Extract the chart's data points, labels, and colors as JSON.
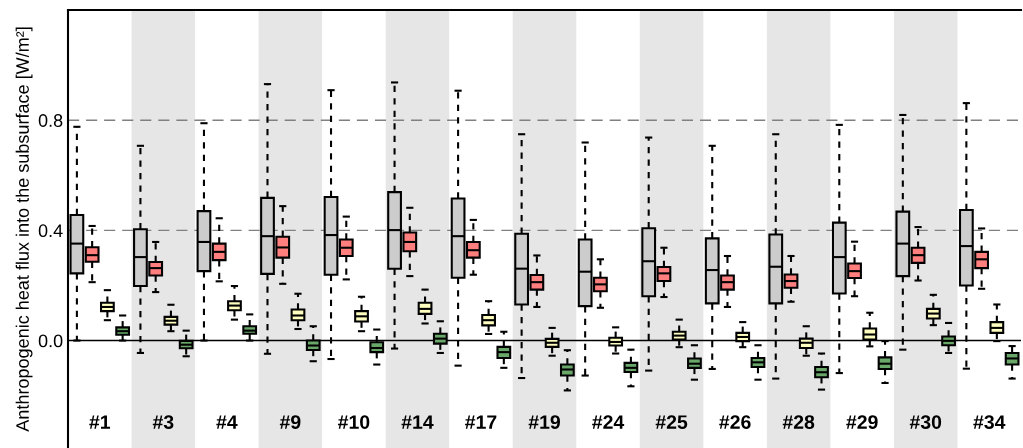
{
  "chart_data": {
    "type": "box",
    "ylabel": "Anthropogenic heat flux into the subsurface [W/m²]",
    "categories": [
      "#1",
      "#3",
      "#4",
      "#9",
      "#10",
      "#14",
      "#17",
      "#19",
      "#24",
      "#25",
      "#26",
      "#28",
      "#29",
      "#30",
      "#34"
    ],
    "ylim": [
      -0.39,
      1.2
    ],
    "yticks": [
      {
        "value": 0,
        "label": "0.0"
      },
      {
        "value": 0.4,
        "label": "0.4"
      },
      {
        "value": 0.8,
        "label": "0.8"
      }
    ],
    "ref_lines": [
      {
        "axis": "y",
        "value": 0.4,
        "color": "#808080",
        "line_style": "dashed"
      },
      {
        "axis": "y",
        "value": 0.8,
        "color": "#808080",
        "line_style": "dashed"
      },
      {
        "axis": "y",
        "value": 0,
        "color": "#000000",
        "line_style": "solid"
      }
    ],
    "bands": [
      {
        "axis": "x",
        "from": "#3",
        "to": "#3",
        "color": "#e6e6e6"
      },
      {
        "axis": "x",
        "from": "#9",
        "to": "#9",
        "color": "#e6e6e6"
      },
      {
        "axis": "x",
        "from": "#14",
        "to": "#14",
        "color": "#e6e6e6"
      },
      {
        "axis": "x",
        "from": "#19",
        "to": "#19",
        "color": "#e6e6e6"
      },
      {
        "axis": "x",
        "from": "#25",
        "to": "#25",
        "color": "#e6e6e6"
      },
      {
        "axis": "x",
        "from": "#28",
        "to": "#28",
        "color": "#e6e6e6"
      },
      {
        "axis": "x",
        "from": "#30",
        "to": "#30",
        "color": "#e6e6e6"
      }
    ],
    "series": [
      {
        "color": "#cccccc",
        "boxes": [
          {
            "low": 0.0,
            "q1": 0.244,
            "median": 0.352,
            "q3": 0.456,
            "high": 0.776
          },
          {
            "low": -0.045,
            "q1": 0.198,
            "median": 0.303,
            "q3": 0.404,
            "high": 0.707
          },
          {
            "low": 0.0,
            "q1": 0.252,
            "median": 0.358,
            "q3": 0.47,
            "high": 0.789
          },
          {
            "low": -0.048,
            "q1": 0.242,
            "median": 0.379,
            "q3": 0.518,
            "high": 0.931
          },
          {
            "low": -0.067,
            "q1": 0.239,
            "median": 0.383,
            "q3": 0.521,
            "high": 0.909
          },
          {
            "low": -0.029,
            "q1": 0.261,
            "median": 0.401,
            "q3": 0.539,
            "high": 0.937
          },
          {
            "low": -0.091,
            "q1": 0.228,
            "median": 0.379,
            "q3": 0.516,
            "high": 0.907
          },
          {
            "low": -0.136,
            "q1": 0.131,
            "median": 0.261,
            "q3": 0.388,
            "high": 0.749
          },
          {
            "low": -0.127,
            "q1": 0.125,
            "median": 0.25,
            "q3": 0.367,
            "high": 0.719
          },
          {
            "low": -0.109,
            "q1": 0.161,
            "median": 0.288,
            "q3": 0.408,
            "high": 0.737
          },
          {
            "low": -0.103,
            "q1": 0.135,
            "median": 0.256,
            "q3": 0.371,
            "high": 0.707
          },
          {
            "low": -0.138,
            "q1": 0.135,
            "median": 0.268,
            "q3": 0.385,
            "high": 0.749
          },
          {
            "low": -0.118,
            "q1": 0.171,
            "median": 0.303,
            "q3": 0.428,
            "high": 0.783
          },
          {
            "low": -0.033,
            "q1": 0.234,
            "median": 0.352,
            "q3": 0.468,
            "high": 0.819
          },
          {
            "low": -0.102,
            "q1": 0.2,
            "median": 0.343,
            "q3": 0.474,
            "high": 0.862
          }
        ]
      },
      {
        "color": "#ff7f7f",
        "boxes": [
          {
            "low": 0.212,
            "q1": 0.286,
            "median": 0.31,
            "q3": 0.339,
            "high": 0.416
          },
          {
            "low": 0.176,
            "q1": 0.236,
            "median": 0.263,
            "q3": 0.285,
            "high": 0.358
          },
          {
            "low": 0.215,
            "q1": 0.292,
            "median": 0.322,
            "q3": 0.352,
            "high": 0.444
          },
          {
            "low": 0.206,
            "q1": 0.301,
            "median": 0.338,
            "q3": 0.377,
            "high": 0.488
          },
          {
            "low": 0.222,
            "q1": 0.307,
            "median": 0.337,
            "q3": 0.367,
            "high": 0.45
          },
          {
            "low": 0.234,
            "q1": 0.324,
            "median": 0.358,
            "q3": 0.392,
            "high": 0.482
          },
          {
            "low": 0.239,
            "q1": 0.301,
            "median": 0.328,
            "q3": 0.358,
            "high": 0.438
          },
          {
            "low": 0.122,
            "q1": 0.185,
            "median": 0.212,
            "q3": 0.238,
            "high": 0.309
          },
          {
            "low": 0.119,
            "q1": 0.179,
            "median": 0.204,
            "q3": 0.228,
            "high": 0.295
          },
          {
            "low": 0.158,
            "q1": 0.216,
            "median": 0.244,
            "q3": 0.267,
            "high": 0.337
          },
          {
            "low": 0.122,
            "q1": 0.185,
            "median": 0.212,
            "q3": 0.236,
            "high": 0.307
          },
          {
            "low": 0.141,
            "q1": 0.192,
            "median": 0.216,
            "q3": 0.24,
            "high": 0.307
          },
          {
            "low": 0.161,
            "q1": 0.227,
            "median": 0.252,
            "q3": 0.28,
            "high": 0.359
          },
          {
            "low": 0.218,
            "q1": 0.282,
            "median": 0.31,
            "q3": 0.337,
            "high": 0.412
          },
          {
            "low": 0.188,
            "q1": 0.263,
            "median": 0.295,
            "q3": 0.322,
            "high": 0.407
          }
        ]
      },
      {
        "color": "#ffffc0",
        "boxes": [
          {
            "low": 0.074,
            "q1": 0.107,
            "median": 0.122,
            "q3": 0.137,
            "high": 0.183
          },
          {
            "low": 0.034,
            "q1": 0.058,
            "median": 0.072,
            "q3": 0.086,
            "high": 0.13
          },
          {
            "low": 0.076,
            "q1": 0.11,
            "median": 0.127,
            "q3": 0.143,
            "high": 0.198
          },
          {
            "low": 0.042,
            "q1": 0.074,
            "median": 0.091,
            "q3": 0.113,
            "high": 0.17
          },
          {
            "low": 0.034,
            "q1": 0.069,
            "median": 0.088,
            "q3": 0.107,
            "high": 0.159
          },
          {
            "low": 0.062,
            "q1": 0.097,
            "median": 0.115,
            "q3": 0.137,
            "high": 0.185
          },
          {
            "low": 0.024,
            "q1": 0.055,
            "median": 0.074,
            "q3": 0.093,
            "high": 0.143
          },
          {
            "low": -0.055,
            "q1": -0.023,
            "median": -0.008,
            "q3": 0.006,
            "high": 0.046
          },
          {
            "low": -0.047,
            "q1": -0.018,
            "median": -0.005,
            "q3": 0.01,
            "high": 0.048
          },
          {
            "low": -0.024,
            "q1": 0.004,
            "median": 0.018,
            "q3": 0.032,
            "high": 0.076
          },
          {
            "low": -0.024,
            "q1": -0.002,
            "median": 0.013,
            "q3": 0.028,
            "high": 0.067
          },
          {
            "low": -0.055,
            "q1": -0.027,
            "median": -0.008,
            "q3": 0.007,
            "high": 0.052
          },
          {
            "low": -0.021,
            "q1": 0.004,
            "median": 0.022,
            "q3": 0.044,
            "high": 0.101
          },
          {
            "low": 0.056,
            "q1": 0.08,
            "median": 0.098,
            "q3": 0.115,
            "high": 0.166
          },
          {
            "low": -0.002,
            "q1": 0.028,
            "median": 0.046,
            "q3": 0.067,
            "high": 0.131
          }
        ]
      },
      {
        "color": "#6aa86a",
        "boxes": [
          {
            "low": 0.0,
            "q1": 0.021,
            "median": 0.034,
            "q3": 0.048,
            "high": 0.091
          },
          {
            "low": -0.057,
            "q1": -0.028,
            "median": -0.015,
            "q3": -0.001,
            "high": 0.036
          },
          {
            "low": 0.0,
            "q1": 0.025,
            "median": 0.036,
            "q3": 0.052,
            "high": 0.095
          },
          {
            "low": -0.075,
            "q1": -0.034,
            "median": -0.018,
            "q3": 0.0,
            "high": 0.052
          },
          {
            "low": -0.087,
            "q1": -0.042,
            "median": -0.027,
            "q3": -0.006,
            "high": 0.04
          },
          {
            "low": -0.045,
            "q1": -0.011,
            "median": 0.007,
            "q3": 0.025,
            "high": 0.07
          },
          {
            "low": -0.099,
            "q1": -0.063,
            "median": -0.042,
            "q3": -0.023,
            "high": 0.032
          },
          {
            "low": -0.181,
            "q1": -0.127,
            "median": -0.105,
            "q3": -0.087,
            "high": -0.035
          },
          {
            "low": -0.166,
            "q1": -0.114,
            "median": -0.099,
            "q3": -0.081,
            "high": -0.033
          },
          {
            "low": -0.142,
            "q1": -0.099,
            "median": -0.084,
            "q3": -0.065,
            "high": -0.017
          },
          {
            "low": -0.142,
            "q1": -0.096,
            "median": -0.079,
            "q3": -0.063,
            "high": -0.017
          },
          {
            "low": -0.178,
            "q1": -0.133,
            "median": -0.115,
            "q3": -0.096,
            "high": -0.047
          },
          {
            "low": -0.154,
            "q1": -0.103,
            "median": -0.084,
            "q3": -0.061,
            "high": -0.002
          },
          {
            "low": -0.045,
            "q1": -0.017,
            "median": -0.001,
            "q3": 0.015,
            "high": 0.064
          },
          {
            "low": -0.138,
            "q1": -0.087,
            "median": -0.065,
            "q3": -0.045,
            "high": -0.02
          }
        ]
      }
    ]
  }
}
